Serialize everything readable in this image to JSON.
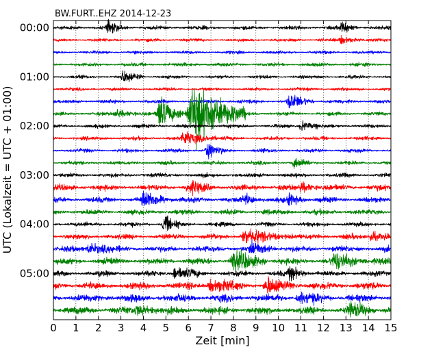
{
  "chart_data": {
    "type": "line",
    "title": "BW.FURT..EHZ 2014-12-23",
    "xlabel": "Zeit  [min]",
    "ylabel": "UTC (Lokalzeit = UTC + 01:00)",
    "xlim": [
      0,
      15
    ],
    "x_ticks": [
      "0",
      "1",
      "2",
      "3",
      "4",
      "5",
      "6",
      "7",
      "8",
      "9",
      "10",
      "11",
      "12",
      "13",
      "14",
      "15"
    ],
    "y_tick_labels": [
      "00:00",
      "01:00",
      "02:00",
      "03:00",
      "04:00",
      "05:00"
    ],
    "trace_interval_min": 15,
    "trace_count": 24,
    "color_cycle": [
      "#000000",
      "#ff0000",
      "#0000ff",
      "#008000"
    ],
    "grid": "vertical dotted at each minute",
    "noise_level": [
      0.35,
      0.3,
      0.3,
      0.35,
      0.3,
      0.3,
      0.35,
      0.35,
      0.35,
      0.35,
      0.35,
      0.35,
      0.4,
      0.55,
      0.5,
      0.5,
      0.4,
      0.5,
      0.55,
      0.6,
      0.5,
      0.65,
      0.7,
      0.7
    ],
    "events": [
      {
        "trace": 0,
        "t": 2.4,
        "amp": 1.0,
        "dur": 0.5
      },
      {
        "trace": 0,
        "t": 12.8,
        "amp": 0.9,
        "dur": 0.4
      },
      {
        "trace": 1,
        "t": 12.8,
        "amp": 0.8,
        "dur": 0.5
      },
      {
        "trace": 4,
        "t": 3.1,
        "amp": 1.3,
        "dur": 0.5
      },
      {
        "trace": 6,
        "t": 10.5,
        "amp": 1.4,
        "dur": 0.6
      },
      {
        "trace": 7,
        "t": 4.7,
        "amp": 3.5,
        "dur": 0.6
      },
      {
        "trace": 7,
        "t": 6.2,
        "amp": 6.5,
        "dur": 1.3
      },
      {
        "trace": 7,
        "t": 2.8,
        "amp": 1.0,
        "dur": 0.5
      },
      {
        "trace": 8,
        "t": 11.0,
        "amp": 1.2,
        "dur": 0.4
      },
      {
        "trace": 9,
        "t": 5.8,
        "amp": 1.4,
        "dur": 0.8
      },
      {
        "trace": 10,
        "t": 6.8,
        "amp": 1.6,
        "dur": 0.4
      },
      {
        "trace": 11,
        "t": 10.7,
        "amp": 0.9,
        "dur": 0.4
      },
      {
        "trace": 13,
        "t": 6.0,
        "amp": 1.1,
        "dur": 0.6
      },
      {
        "trace": 13,
        "t": 11.0,
        "amp": 1.1,
        "dur": 0.4
      },
      {
        "trace": 14,
        "t": 4.0,
        "amp": 1.6,
        "dur": 0.7
      },
      {
        "trace": 14,
        "t": 8.5,
        "amp": 1.0,
        "dur": 0.5
      },
      {
        "trace": 14,
        "t": 10.5,
        "amp": 1.0,
        "dur": 0.5
      },
      {
        "trace": 16,
        "t": 4.9,
        "amp": 1.8,
        "dur": 0.4
      },
      {
        "trace": 17,
        "t": 8.5,
        "amp": 1.2,
        "dur": 1.2
      },
      {
        "trace": 17,
        "t": 14.1,
        "amp": 1.0,
        "dur": 0.5
      },
      {
        "trace": 18,
        "t": 1.6,
        "amp": 1.2,
        "dur": 0.6
      },
      {
        "trace": 18,
        "t": 8.8,
        "amp": 1.2,
        "dur": 0.6
      },
      {
        "trace": 19,
        "t": 8.0,
        "amp": 2.0,
        "dur": 0.8
      },
      {
        "trace": 19,
        "t": 12.5,
        "amp": 1.6,
        "dur": 0.8
      },
      {
        "trace": 20,
        "t": 5.4,
        "amp": 1.3,
        "dur": 0.6
      },
      {
        "trace": 20,
        "t": 10.5,
        "amp": 1.2,
        "dur": 0.5
      },
      {
        "trace": 21,
        "t": 7.0,
        "amp": 1.2,
        "dur": 0.8
      },
      {
        "trace": 21,
        "t": 9.5,
        "amp": 1.4,
        "dur": 0.8
      },
      {
        "trace": 22,
        "t": 10.9,
        "amp": 1.0,
        "dur": 0.6
      },
      {
        "trace": 23,
        "t": 13.2,
        "amp": 1.4,
        "dur": 0.6
      },
      {
        "trace": 23,
        "t": 3.7,
        "amp": 1.0,
        "dur": 0.6
      }
    ]
  }
}
